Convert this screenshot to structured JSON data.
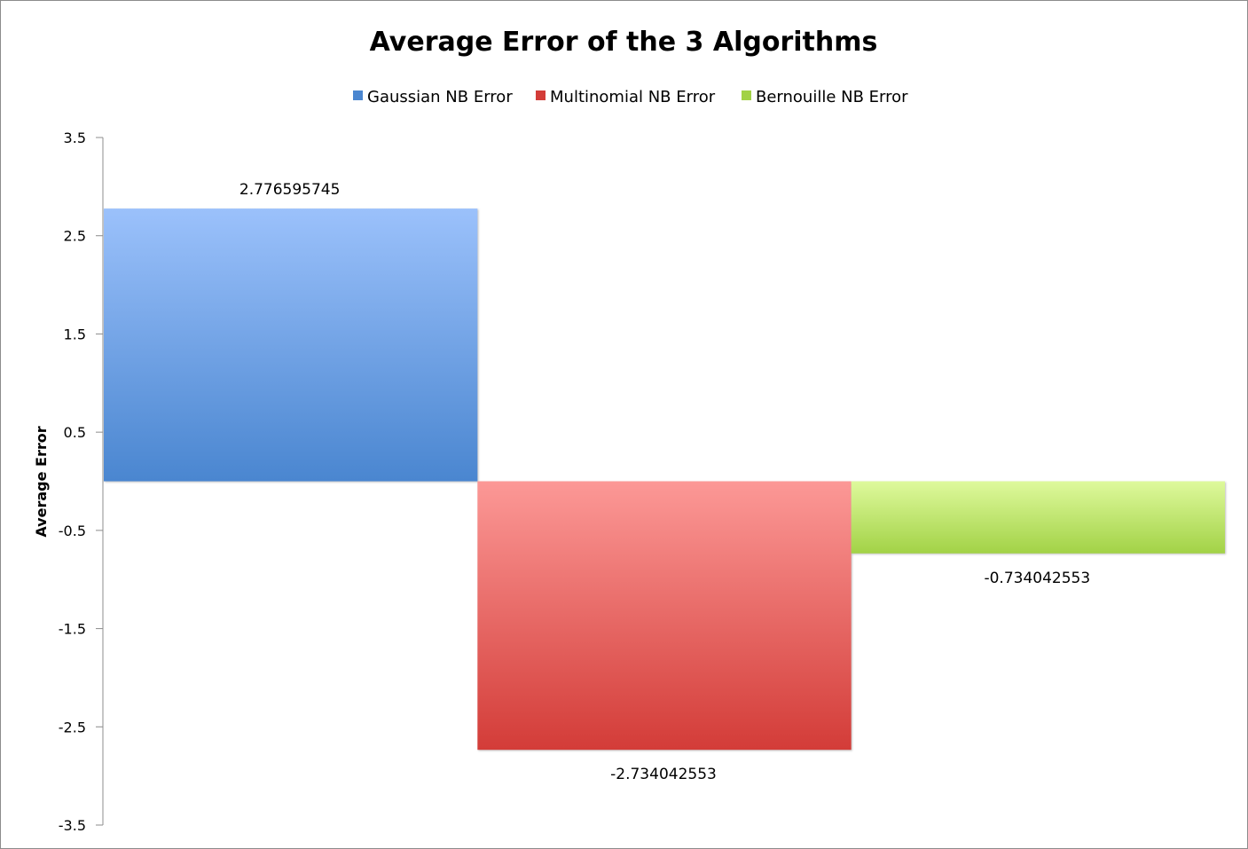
{
  "chart_data": {
    "type": "bar",
    "title": "Average Error of the 3 Algorithms",
    "xlabel": "",
    "ylabel": "Average Error",
    "ylim": [
      -3.5,
      3.5
    ],
    "yticks": [
      3.5,
      2.5,
      1.5,
      0.5,
      -0.5,
      -1.5,
      -2.5,
      -3.5
    ],
    "grid": false,
    "legend_position": "top",
    "series": [
      {
        "name": "Gaussian NB Error",
        "value": 2.776595745,
        "label": "2.776595745",
        "color": "#4a86d0",
        "color_light": "#9bc1fb"
      },
      {
        "name": "Multinomial NB Error",
        "value": -2.734042553,
        "label": "-2.734042553",
        "color": "#d33c38",
        "color_light": "#fc9896"
      },
      {
        "name": "Bernouille NB Error",
        "value": -0.734042553,
        "label": "-0.734042553",
        "color": "#a2d246",
        "color_light": "#def99c"
      }
    ]
  }
}
